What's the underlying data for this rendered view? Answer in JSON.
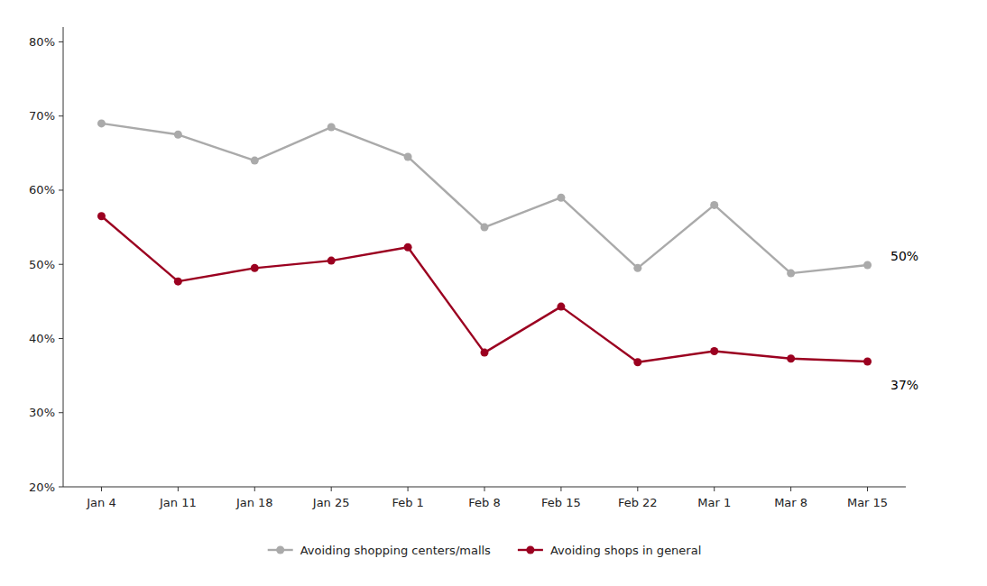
{
  "chart_data": {
    "type": "line",
    "categories": [
      "Jan 4",
      "Jan 11",
      "Jan 18",
      "Jan 25",
      "Feb 1",
      "Feb 8",
      "Feb 15",
      "Feb 22",
      "Mar 1",
      "Mar 8",
      "Mar 15"
    ],
    "series": [
      {
        "name": "Avoiding shopping centers/malls",
        "color": "#aaaaaa",
        "marker": "circle",
        "values": [
          0.69,
          0.675,
          0.64,
          0.685,
          0.645,
          0.55,
          0.59,
          0.495,
          0.58,
          0.488,
          0.499
        ]
      },
      {
        "name": "Avoiding shops in general",
        "color": "#9b0020",
        "marker": "circle",
        "values": [
          0.565,
          0.477,
          0.495,
          0.505,
          0.523,
          0.381,
          0.443,
          0.368,
          0.383,
          0.373,
          0.369
        ]
      }
    ],
    "ylim": [
      0.2,
      0.82
    ],
    "yticks": [
      {
        "value": 0.2,
        "label": "20%"
      },
      {
        "value": 0.3,
        "label": "30%"
      },
      {
        "value": 0.4,
        "label": "40%"
      },
      {
        "value": 0.5,
        "label": "50%"
      },
      {
        "value": 0.6,
        "label": "60%"
      },
      {
        "value": 0.7,
        "label": "70%"
      },
      {
        "value": 0.8,
        "label": "80%"
      }
    ],
    "annotations": [
      {
        "text": "50%",
        "x": "Mar 15",
        "y": 0.499
      },
      {
        "text": "37%",
        "x": "Mar 15",
        "y": 0.369
      }
    ],
    "grid": false,
    "legend": "bottom"
  }
}
